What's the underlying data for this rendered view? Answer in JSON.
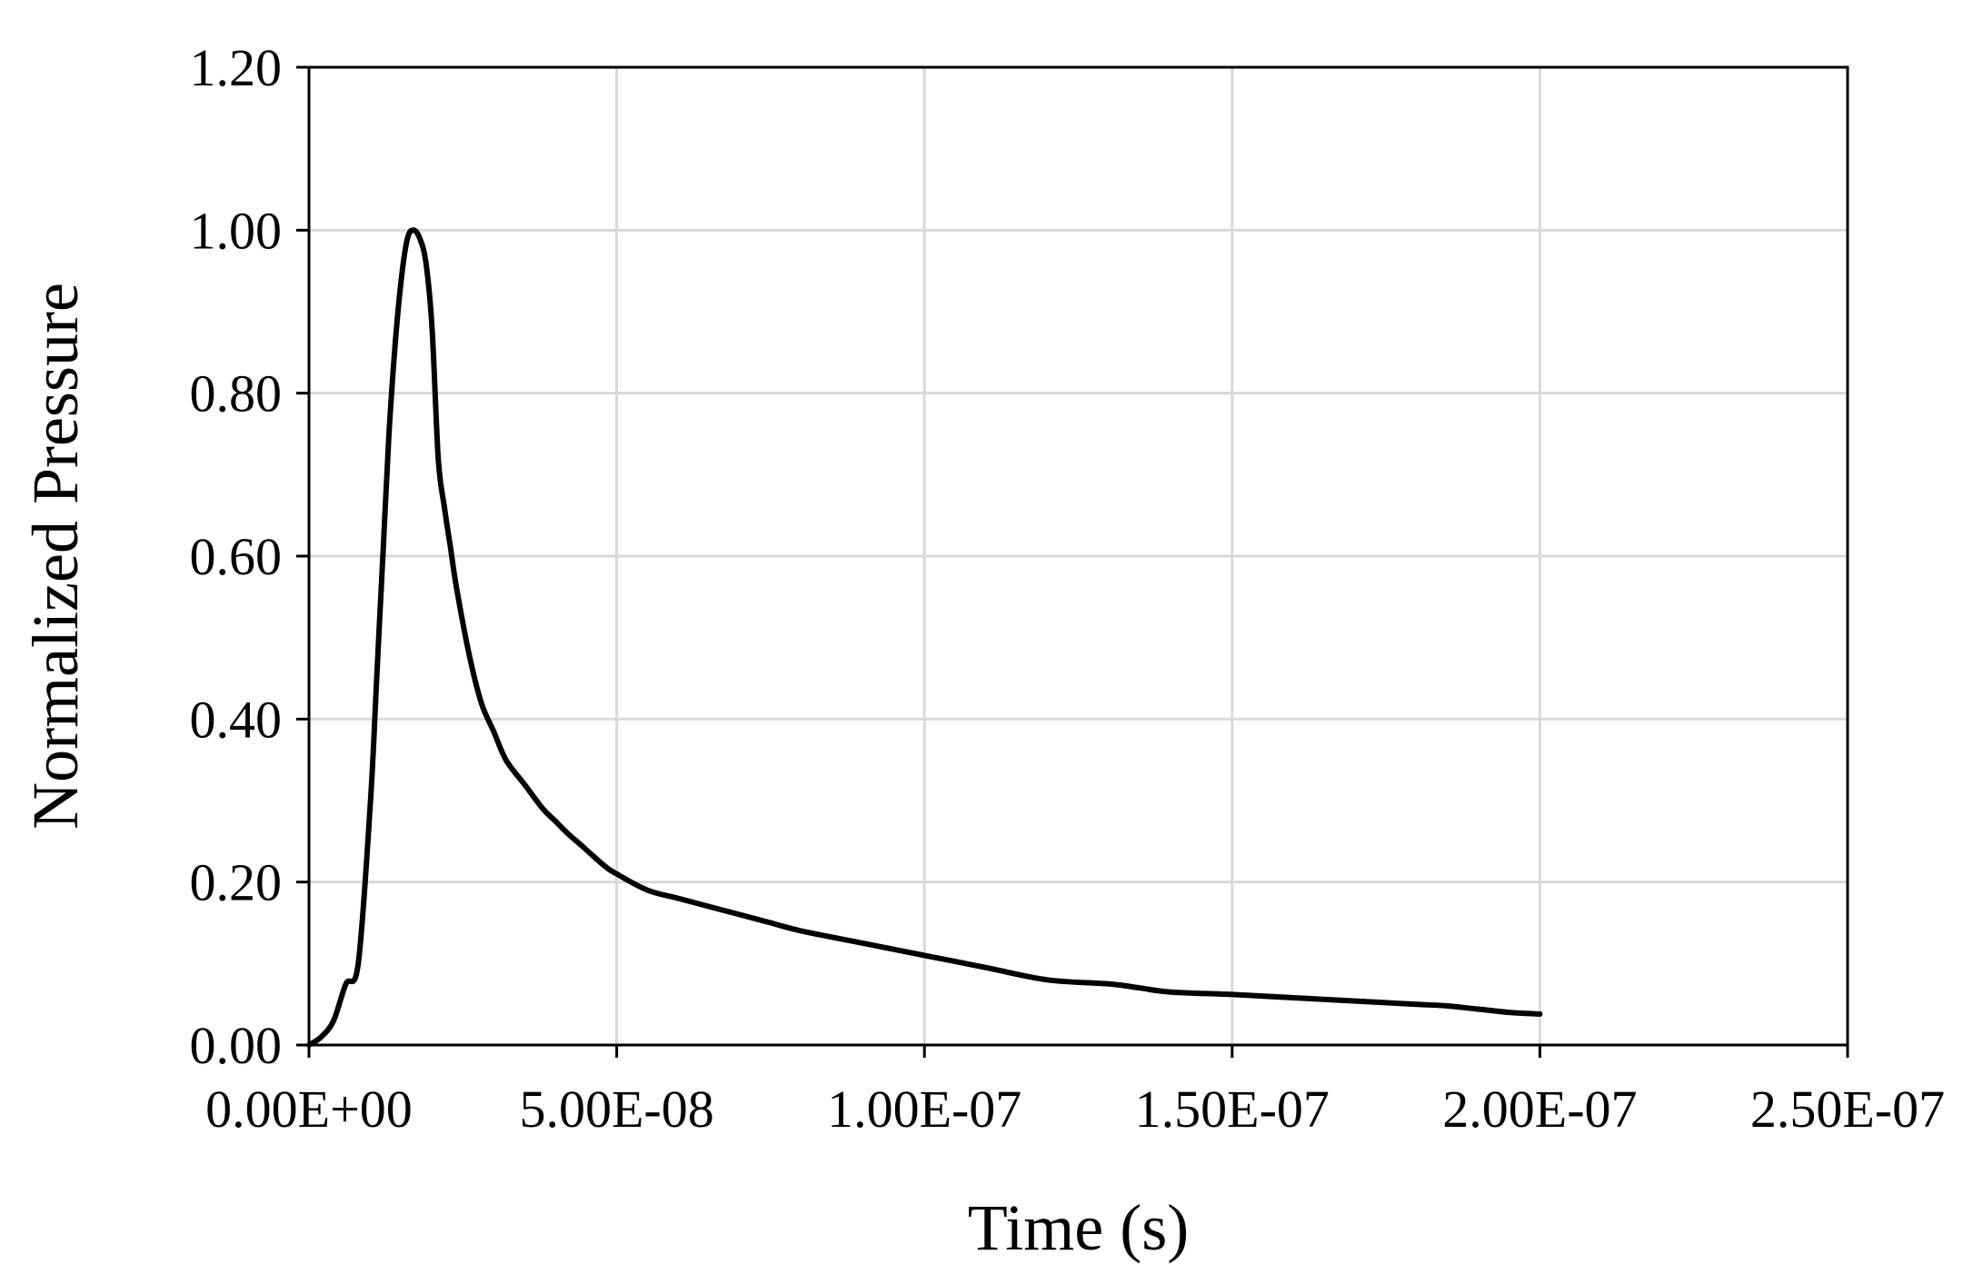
{
  "chart_data": {
    "type": "line",
    "title": "",
    "xlabel": "Time (s)",
    "ylabel": "Normalized Pressure",
    "xlim": [
      0,
      2.5e-07
    ],
    "ylim": [
      0,
      1.2
    ],
    "x_ticks": [
      0,
      5e-08,
      1e-07,
      1.5e-07,
      2e-07,
      2.5e-07
    ],
    "x_tick_labels": [
      "0.00E+00",
      "5.00E-08",
      "1.00E-07",
      "1.50E-07",
      "2.00E-07",
      "2.50E-07"
    ],
    "y_ticks": [
      0,
      0.2,
      0.4,
      0.6,
      0.8,
      1.0,
      1.2
    ],
    "y_tick_labels": [
      "0.00",
      "0.20",
      "0.40",
      "0.60",
      "0.80",
      "1.00",
      "1.20"
    ],
    "grid": true,
    "legend": "none",
    "line_color": "#000000",
    "grid_color": "#d9d9d9",
    "series": [
      {
        "x": [
          0,
          2e-09,
          4e-09,
          6e-09,
          8e-09,
          1e-08,
          1.1e-08,
          1.2e-08,
          1.3e-08,
          1.4e-08,
          1.5e-08,
          1.6e-08,
          1.7e-08,
          1.8e-08,
          1.9e-08,
          2e-08,
          2.1e-08,
          2.2e-08,
          2.3e-08,
          2.4e-08,
          2.6e-08,
          2.8e-08,
          3e-08,
          3.2e-08,
          3.5e-08,
          3.8e-08,
          4e-08,
          4.2e-08,
          4.5e-08,
          4.8e-08,
          5e-08,
          5.5e-08,
          6e-08,
          6.5e-08,
          7e-08,
          7.5e-08,
          8e-08,
          9e-08,
          1e-07,
          1.1e-07,
          1.2e-07,
          1.3e-07,
          1.35e-07,
          1.4e-07,
          1.5e-07,
          1.6e-07,
          1.7e-07,
          1.8e-07,
          1.85e-07,
          1.9e-07,
          1.95e-07,
          2e-07
        ],
        "y": [
          0,
          0.01,
          0.03,
          0.075,
          0.1,
          0.3,
          0.45,
          0.6,
          0.75,
          0.86,
          0.94,
          0.99,
          1.0,
          0.99,
          0.96,
          0.88,
          0.72,
          0.66,
          0.61,
          0.56,
          0.48,
          0.42,
          0.385,
          0.35,
          0.32,
          0.29,
          0.275,
          0.26,
          0.24,
          0.22,
          0.21,
          0.19,
          0.18,
          0.17,
          0.16,
          0.15,
          0.14,
          0.125,
          0.11,
          0.095,
          0.08,
          0.075,
          0.07,
          0.065,
          0.062,
          0.058,
          0.054,
          0.05,
          0.048,
          0.044,
          0.04,
          0.038
        ]
      }
    ]
  }
}
